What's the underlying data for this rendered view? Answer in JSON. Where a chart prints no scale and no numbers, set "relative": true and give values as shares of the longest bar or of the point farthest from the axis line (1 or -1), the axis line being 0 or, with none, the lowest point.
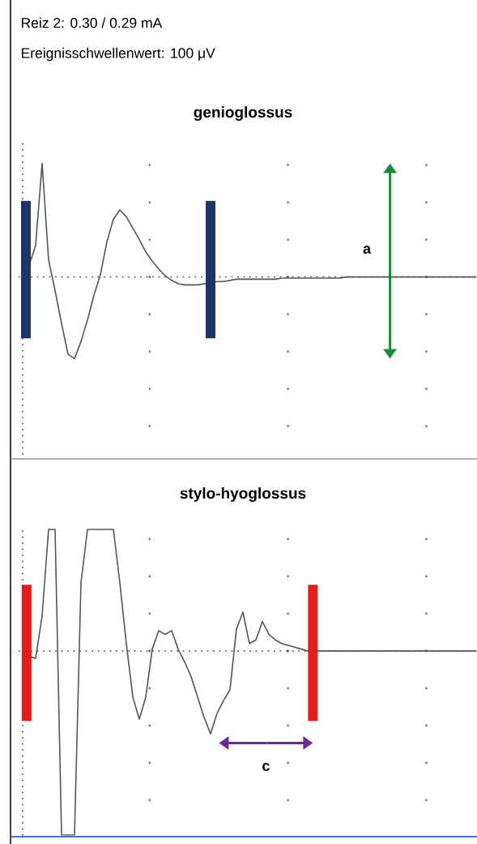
{
  "chart_data": [
    {
      "type": "line",
      "title": "genioglossus",
      "relative": true,
      "grid": "x",
      "annotations": [
        "Reiz 2: 0.30 / 0.29 mA",
        "Ereignisschwellenwert: 100 μV",
        "a"
      ],
      "categories": [
        null,
        null,
        null,
        null,
        null,
        null,
        null,
        null,
        null,
        null,
        null,
        null,
        null,
        null,
        null,
        null,
        null,
        null,
        null,
        null,
        null,
        null,
        null,
        null,
        null,
        null,
        null,
        null,
        null,
        null,
        null,
        null,
        null,
        null,
        null,
        null,
        null,
        null,
        null,
        null,
        null,
        null,
        null,
        null,
        null,
        null,
        null,
        null,
        null,
        null,
        null,
        null,
        null,
        null,
        null,
        null,
        null,
        null,
        null,
        null,
        null,
        null,
        null,
        null,
        null,
        null,
        null,
        null,
        null,
        null,
        null
      ],
      "series": [
        {
          "color": "#555555",
          "values": [
            0.07,
            0.1,
            0.28,
            1,
            0.15,
            -0.12,
            -0.41,
            -0.68,
            -0.72,
            -0.57,
            -0.38,
            -0.16,
            0.02,
            0.31,
            0.51,
            0.59,
            0.53,
            0.43,
            0.33,
            0.22,
            0.14,
            0.07,
            0.01,
            -0.03,
            -0.06,
            -0.07,
            -0.07,
            -0.07,
            -0.06,
            -0.05,
            -0.04,
            -0.04,
            -0.03,
            -0.02,
            -0.02,
            -0.02,
            -0.02,
            -0.02,
            -0.02,
            -0.02,
            -0.01,
            -0.01,
            -0.01,
            -0.01,
            -0.01,
            -0.01,
            -0.01,
            -0.01,
            -0.01,
            -0.01,
            0,
            0,
            0,
            0,
            0,
            0,
            0,
            0,
            0,
            0,
            0,
            0,
            0,
            0,
            0,
            0,
            0,
            0,
            0,
            0,
            0
          ]
        }
      ],
      "ref_lines": [
        {
          "axis": "y",
          "value": 0,
          "color": "#5a5a5a",
          "line_style": "dotted"
        }
      ]
    },
    {
      "type": "line",
      "title": "stylo-hyoglossus",
      "relative": true,
      "grid": "x",
      "annotations": [
        "c"
      ],
      "categories": [
        null,
        null,
        null,
        null,
        null,
        null,
        null,
        null,
        null,
        null,
        null,
        null,
        null,
        null,
        null,
        null,
        null,
        null,
        null,
        null,
        null,
        null,
        null,
        null,
        null,
        null,
        null,
        null,
        null,
        null,
        null,
        null,
        null,
        null,
        null,
        null,
        null,
        null,
        null,
        null,
        null,
        null,
        null,
        null,
        null,
        null,
        null,
        null,
        null,
        null,
        null,
        null,
        null,
        null,
        null,
        null,
        null,
        null,
        null,
        null,
        null,
        null,
        null,
        null,
        null,
        null,
        null,
        null,
        null,
        null,
        null
      ],
      "series": [
        {
          "color": "#555555",
          "values": [
            -0.02,
            -0.03,
            -0.04,
            0.19,
            0.66,
            0.66,
            -1,
            -1,
            -1,
            0.37,
            0.66,
            0.66,
            0.66,
            0.66,
            0.66,
            0.37,
            0.04,
            -0.25,
            -0.37,
            -0.25,
            0.01,
            0.11,
            0.09,
            0.11,
            0.01,
            -0.06,
            -0.14,
            -0.25,
            -0.36,
            -0.45,
            -0.34,
            -0.27,
            -0.21,
            0.12,
            0.21,
            0.04,
            0.06,
            0.16,
            0.09,
            0.06,
            0.04,
            0.03,
            0.02,
            0.01,
            0,
            0,
            0,
            0,
            0,
            0,
            0,
            0,
            0,
            0,
            0,
            0,
            0,
            0,
            0,
            0,
            0,
            0,
            0,
            0,
            0,
            0,
            0,
            0,
            0,
            0,
            0
          ]
        }
      ],
      "ref_lines": [
        {
          "axis": "y",
          "value": 0,
          "color": "#5a5a5a",
          "line_style": "dotted"
        }
      ]
    }
  ]
}
